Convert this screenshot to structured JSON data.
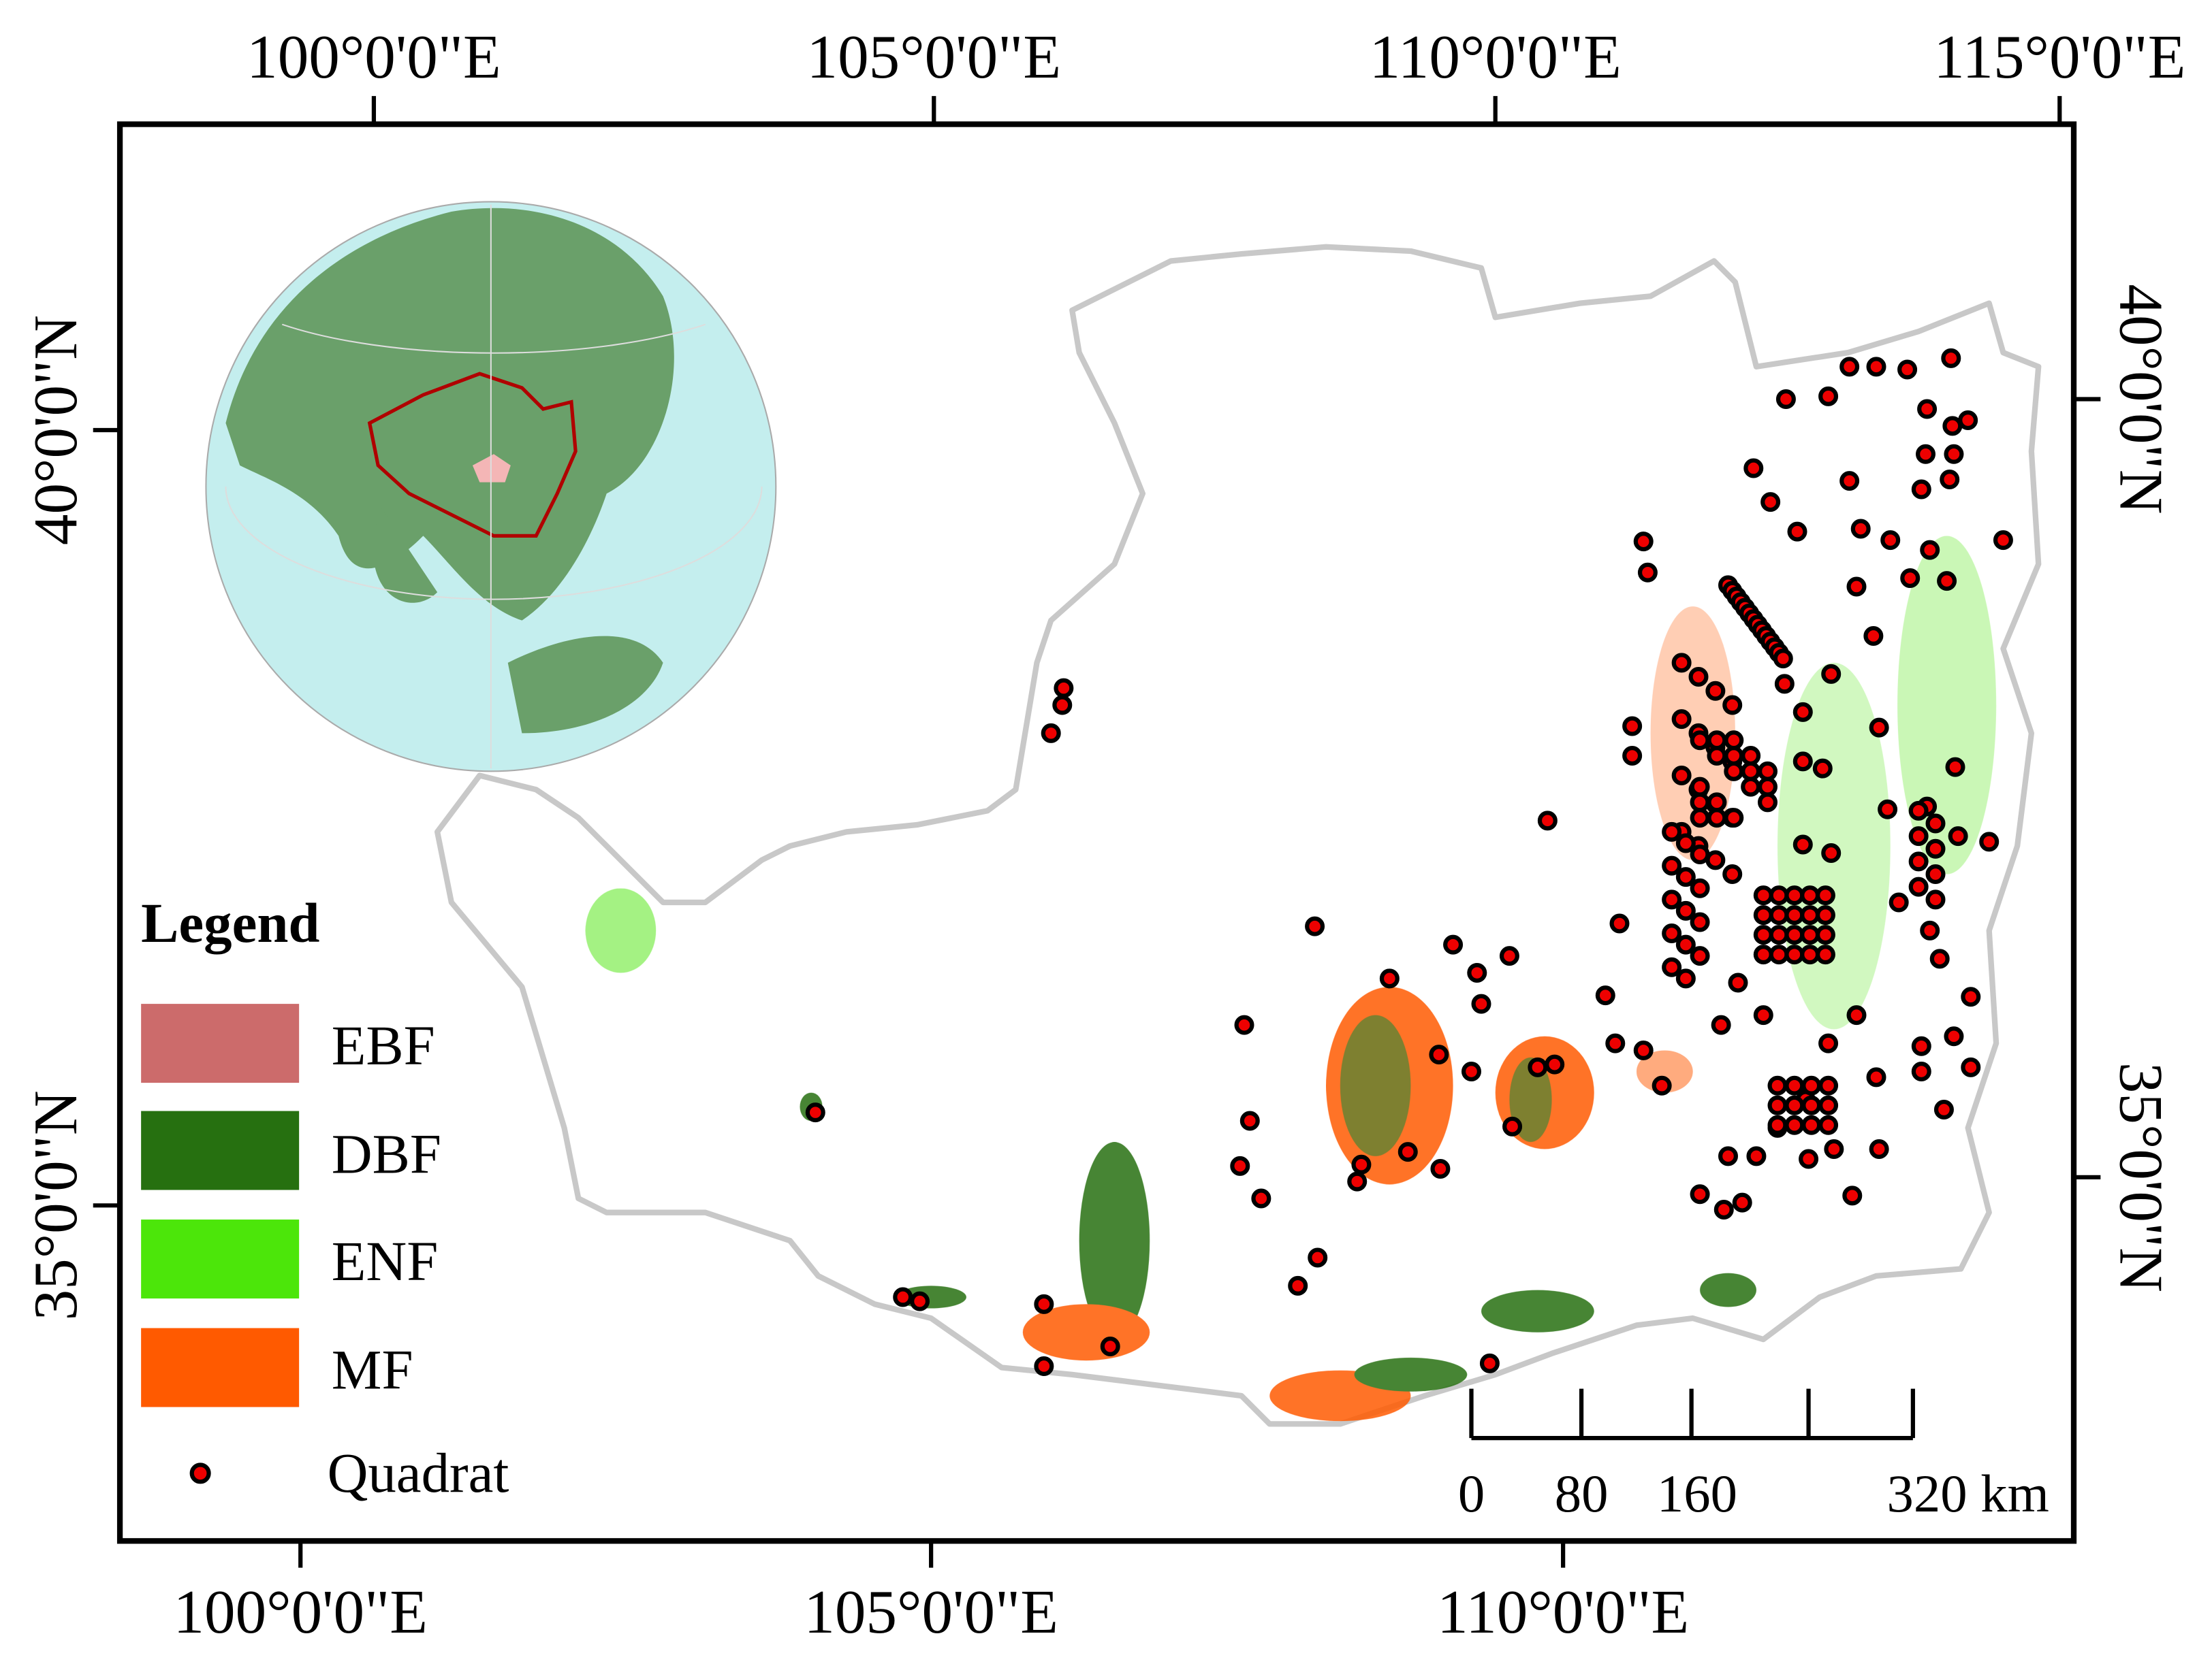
{
  "map": {
    "top_labels": [
      "100°0'0\"E",
      "105°0'0\"E",
      "110°0'0\"E",
      "115°0'0\"E"
    ],
    "bottom_labels": [
      "100°0'0\"E",
      "105°0'0\"E",
      "110°0'0\"E"
    ],
    "left_labels": [
      "40°0'0\"N",
      "35°0'0\"N"
    ],
    "right_labels": [
      "40°0'0\"N",
      "35°0'0\"N"
    ],
    "legend": {
      "title": "Legend",
      "items": [
        "EBF",
        "DBF",
        "ENF",
        "MF",
        "Quadrat"
      ]
    },
    "scale_bar": {
      "labels": [
        "0",
        "80",
        "160",
        "320 km"
      ]
    }
  }
}
